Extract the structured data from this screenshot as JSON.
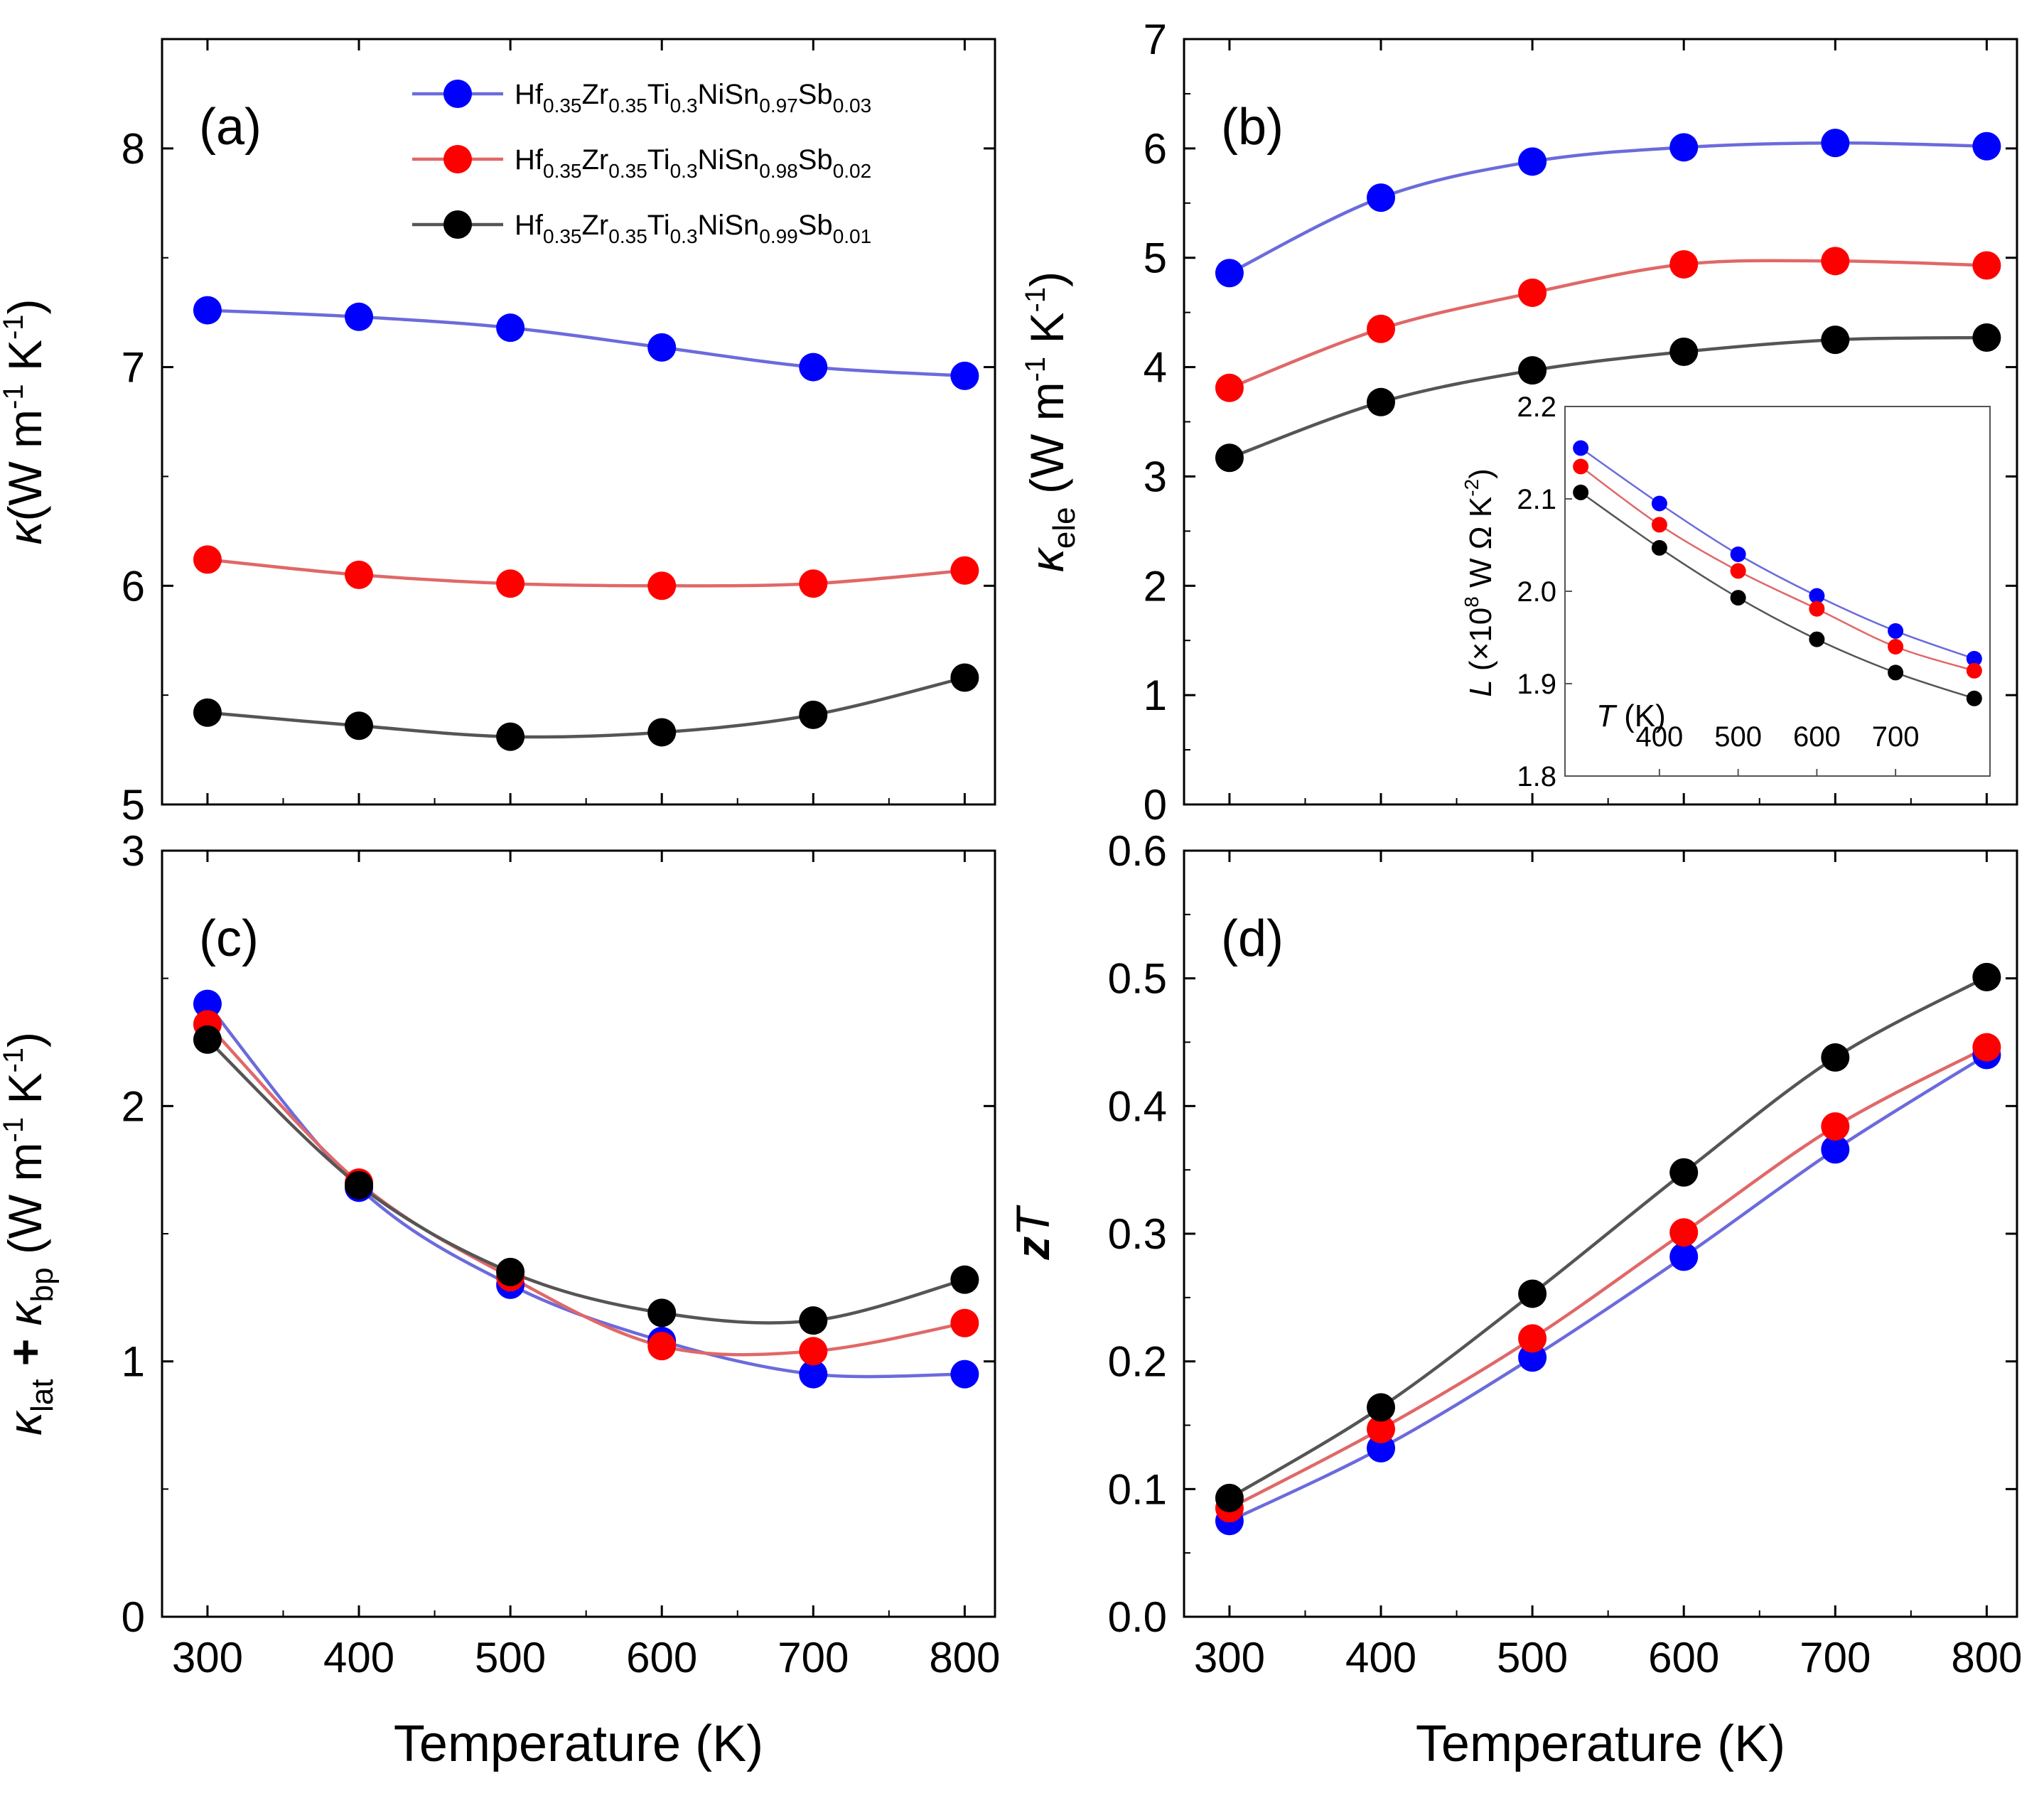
{
  "figure": {
    "x_title": "Temperature (K)",
    "colors": {
      "blue": "#0000ff",
      "red": "#ff0000",
      "black": "#000000",
      "blue_line": "#6b6bdc",
      "red_line": "#e06868",
      "black_line": "#555555"
    }
  },
  "legend": [
    {
      "name": "x003",
      "color": "blue",
      "base": [
        "Hf",
        "Zr",
        "Ti",
        "NiSn",
        "Sb"
      ],
      "subs": [
        "0.35",
        "0.35",
        "0.3",
        "0.97",
        "0.03"
      ]
    },
    {
      "name": "x002",
      "color": "red",
      "base": [
        "Hf",
        "Zr",
        "Ti",
        "NiSn",
        "Sb"
      ],
      "subs": [
        "0.35",
        "0.35",
        "0.3",
        "0.98",
        "0.02"
      ]
    },
    {
      "name": "x001",
      "color": "black",
      "base": [
        "Hf",
        "Zr",
        "Ti",
        "NiSn",
        "Sb"
      ],
      "subs": [
        "0.35",
        "0.35",
        "0.3",
        "0.99",
        "0.01"
      ]
    }
  ],
  "chart_data": [
    {
      "panel": "a",
      "label": "(a)",
      "type": "line",
      "ylabel": {
        "kappa": "κ",
        "unit": "(W m",
        "exp1": "-1",
        "mid": " K",
        "exp2": "-1",
        "close": ")"
      },
      "x": [
        300,
        400,
        500,
        600,
        700,
        800
      ],
      "xlim": [
        270,
        820
      ],
      "ylim": [
        5,
        8.5
      ],
      "xticks": [
        300,
        400,
        500,
        600,
        700,
        800
      ],
      "yticks": [
        5,
        6,
        7,
        8
      ],
      "ytick_labels": [
        "5",
        "6",
        "7",
        "8"
      ],
      "series": [
        {
          "name": "x=0.03",
          "color": "blue",
          "values": [
            7.26,
            7.23,
            7.18,
            7.09,
            7.0,
            6.96
          ]
        },
        {
          "name": "x=0.02",
          "color": "red",
          "values": [
            6.12,
            6.05,
            6.01,
            6.0,
            6.01,
            6.07
          ]
        },
        {
          "name": "x=0.01",
          "color": "black",
          "values": [
            5.42,
            5.36,
            5.31,
            5.33,
            5.41,
            5.58
          ]
        }
      ]
    },
    {
      "panel": "b",
      "label": "(b)",
      "type": "line",
      "ylabel": {
        "kappa": "κ",
        "sub": "ele",
        "unit": " (W m",
        "exp1": "-1",
        "mid": " K",
        "exp2": "-1",
        "close": ")"
      },
      "x": [
        300,
        400,
        500,
        600,
        700,
        800
      ],
      "xlim": [
        270,
        820
      ],
      "ylim": [
        0,
        7
      ],
      "xticks": [
        300,
        400,
        500,
        600,
        700,
        800
      ],
      "yticks": [
        0,
        1,
        2,
        3,
        4,
        5,
        6,
        7
      ],
      "ytick_labels": [
        "0",
        "1",
        "2",
        "3",
        "4",
        "5",
        "6",
        "7"
      ],
      "series": [
        {
          "name": "x=0.03",
          "color": "blue",
          "values": [
            4.86,
            5.55,
            5.88,
            6.01,
            6.05,
            6.02
          ]
        },
        {
          "name": "x=0.02",
          "color": "red",
          "values": [
            3.81,
            4.35,
            4.68,
            4.94,
            4.97,
            4.93
          ]
        },
        {
          "name": "x=0.01",
          "color": "black",
          "values": [
            3.17,
            3.68,
            3.97,
            4.14,
            4.25,
            4.27
          ]
        }
      ],
      "inset": {
        "type": "line",
        "ylabel": {
          "L": "L",
          "rest": " (×10",
          "exp1": "8",
          "unit": " W Ω K",
          "exp2": "-2",
          "close": ")"
        },
        "xlabel": {
          "T": "T",
          "unit": " (K)"
        },
        "x": [
          300,
          400,
          500,
          600,
          700,
          800
        ],
        "xlim": [
          280,
          820
        ],
        "ylim": [
          1.8,
          2.2
        ],
        "xticks": [
          400,
          500,
          600,
          700
        ],
        "yticks": [
          1.8,
          1.9,
          2.0,
          2.1,
          2.2
        ],
        "ytick_labels": [
          "1.8",
          "1.9",
          "2.0",
          "2.1",
          "2.2"
        ],
        "series": [
          {
            "name": "x=0.03",
            "color": "blue",
            "values": [
              2.155,
              2.095,
              2.04,
              1.995,
              1.957,
              1.927
            ]
          },
          {
            "name": "x=0.02",
            "color": "red",
            "values": [
              2.135,
              2.072,
              2.022,
              1.981,
              1.94,
              1.914
            ]
          },
          {
            "name": "x=0.01",
            "color": "black",
            "values": [
              2.107,
              2.047,
              1.993,
              1.948,
              1.912,
              1.884
            ]
          }
        ]
      }
    },
    {
      "panel": "c",
      "label": "(c)",
      "type": "line",
      "ylabel": {
        "k1": "κ",
        "s1": "lat",
        "plus": " + ",
        "k2": "κ",
        "s2": "bp",
        "unit": " (W m",
        "exp1": "-1",
        "mid": " K",
        "exp2": "-1",
        "close": ")"
      },
      "x": [
        300,
        400,
        500,
        600,
        700,
        800
      ],
      "xlim": [
        270,
        820
      ],
      "ylim": [
        0,
        3
      ],
      "xticks": [
        300,
        400,
        500,
        600,
        700,
        800
      ],
      "xtick_labels": [
        "300",
        "400",
        "500",
        "600",
        "700",
        "800"
      ],
      "yticks": [
        0,
        1,
        2,
        3
      ],
      "ytick_labels": [
        "0",
        "1",
        "2",
        "3"
      ],
      "series": [
        {
          "name": "x=0.03",
          "color": "blue",
          "values": [
            2.4,
            1.68,
            1.3,
            1.08,
            0.95,
            0.95
          ]
        },
        {
          "name": "x=0.02",
          "color": "red",
          "values": [
            2.32,
            1.7,
            1.33,
            1.06,
            1.04,
            1.15
          ]
        },
        {
          "name": "x=0.01",
          "color": "black",
          "values": [
            2.26,
            1.69,
            1.35,
            1.19,
            1.16,
            1.32
          ]
        }
      ]
    },
    {
      "panel": "d",
      "label": "(d)",
      "type": "line",
      "ylabel": {
        "z": "z",
        "T": "T"
      },
      "x": [
        300,
        400,
        500,
        600,
        700,
        800
      ],
      "xlim": [
        270,
        820
      ],
      "ylim": [
        0,
        0.6
      ],
      "xticks": [
        300,
        400,
        500,
        600,
        700,
        800
      ],
      "xtick_labels": [
        "300",
        "400",
        "500",
        "600",
        "700",
        "800"
      ],
      "yticks": [
        0,
        0.1,
        0.2,
        0.3,
        0.4,
        0.5,
        0.6
      ],
      "ytick_labels": [
        "0.0",
        "0.1",
        "0.2",
        "0.3",
        "0.4",
        "0.5",
        "0.6"
      ],
      "series": [
        {
          "name": "x=0.03",
          "color": "blue",
          "values": [
            0.075,
            0.132,
            0.203,
            0.282,
            0.366,
            0.44
          ]
        },
        {
          "name": "x=0.02",
          "color": "red",
          "values": [
            0.085,
            0.147,
            0.218,
            0.301,
            0.384,
            0.446
          ]
        },
        {
          "name": "x=0.01",
          "color": "black",
          "values": [
            0.093,
            0.164,
            0.253,
            0.348,
            0.438,
            0.501
          ]
        }
      ]
    }
  ]
}
